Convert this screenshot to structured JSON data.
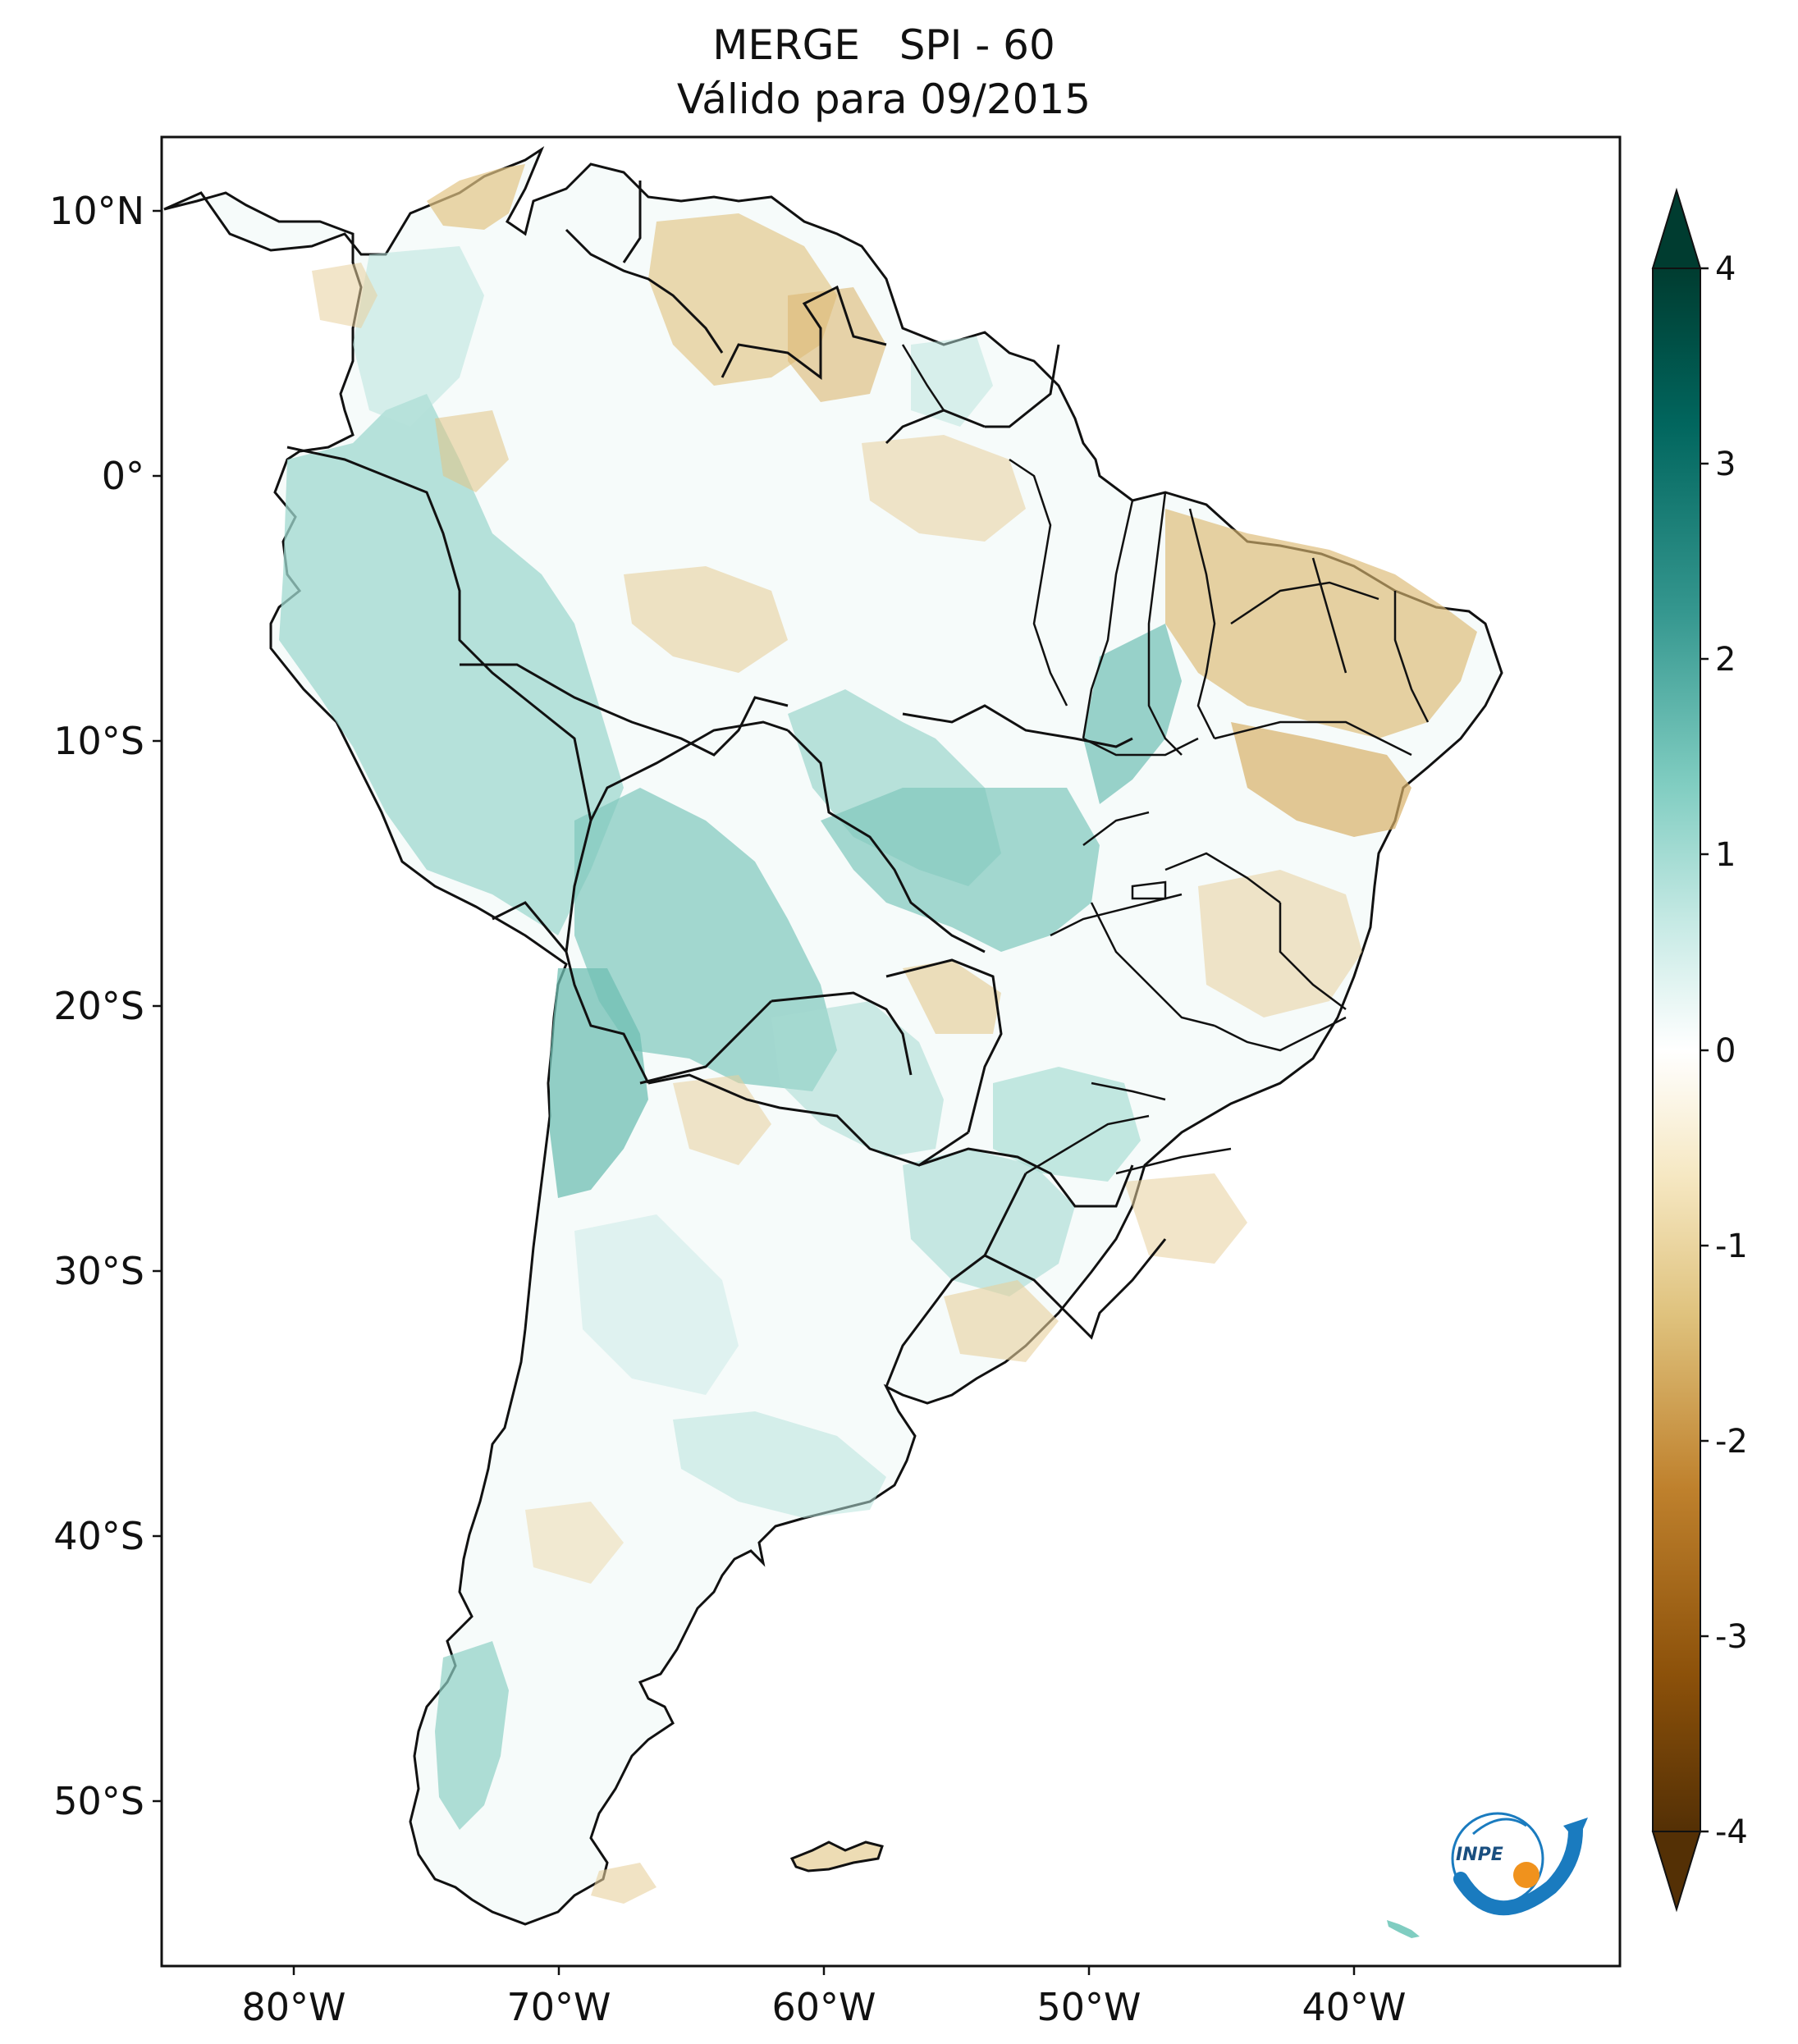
{
  "map": {
    "title_line1": "MERGE   SPI - 60",
    "title_line2": "Válido para 09/2015",
    "lat_ticks": [
      "10°N",
      "0°",
      "10°S",
      "20°S",
      "30°S",
      "40°S",
      "50°S"
    ],
    "lon_ticks": [
      "80°W",
      "70°W",
      "60°W",
      "50°W",
      "40°W"
    ],
    "extent": {
      "lon": [
        -85,
        -30
      ],
      "lat": [
        -56,
        13
      ]
    }
  },
  "colorbar": {
    "ticks": [
      "4",
      "3",
      "2",
      "1",
      "0",
      "-1",
      "-2",
      "-3",
      "-4"
    ],
    "range": [
      -4,
      4
    ],
    "colormap": "BrBG",
    "extend": "both",
    "stops": [
      "#543005",
      "#8c510a",
      "#bf812d",
      "#dfc27d",
      "#f6e8c3",
      "#ffffff",
      "#c7eae5",
      "#80cdc1",
      "#35978f",
      "#01665e",
      "#003c30"
    ]
  },
  "logo": {
    "text": "INPE"
  }
}
